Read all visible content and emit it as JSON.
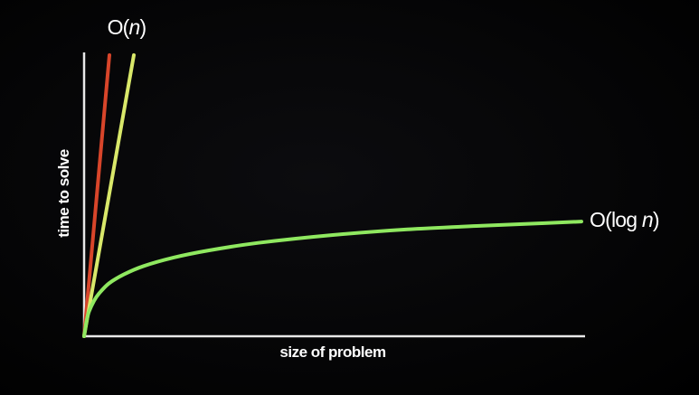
{
  "chart_data": {
    "type": "line",
    "xlabel": "size of problem",
    "ylabel": "time to solve",
    "grid": false,
    "legend": "none",
    "xlim": [
      0,
      100
    ],
    "ylim": [
      0,
      100
    ],
    "series": [
      {
        "name": "",
        "color": "#d8452a",
        "points": [
          [
            0,
            0
          ],
          [
            5.1,
            100
          ]
        ]
      },
      {
        "name": "O(n)",
        "name_parts": {
          "prefix": "O(",
          "variable": "n",
          "suffix": ")"
        },
        "color": "#d9e86a",
        "points": [
          [
            0,
            0
          ],
          [
            10,
            100
          ]
        ]
      },
      {
        "name": "O(log n)",
        "name_parts": {
          "prefix": "O(log ",
          "variable": "n",
          "suffix": ")"
        },
        "color": "#8fe860",
        "function": "log",
        "points": [
          [
            0,
            0
          ],
          [
            0.5,
            5.5
          ],
          [
            1,
            8.8
          ],
          [
            2,
            12.6
          ],
          [
            3,
            15.2
          ],
          [
            5,
            18.8
          ],
          [
            8,
            22.0
          ],
          [
            12,
            25.0
          ],
          [
            18,
            28.0
          ],
          [
            25,
            30.5
          ],
          [
            35,
            33.2
          ],
          [
            50,
            36.0
          ],
          [
            65,
            38.0
          ],
          [
            80,
            39.3
          ],
          [
            92,
            40.2
          ],
          [
            100,
            40.8
          ]
        ]
      }
    ]
  }
}
